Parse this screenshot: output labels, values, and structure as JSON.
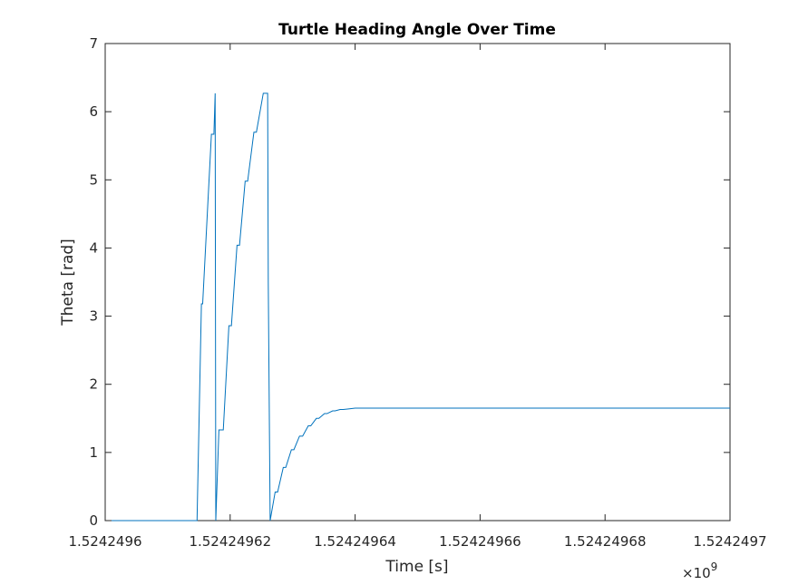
{
  "chart_data": {
    "type": "line",
    "title": "Turtle Heading Angle Over Time",
    "xlabel": "Time [s]",
    "ylabel": "Theta [rad]",
    "xlim": [
      1524249600,
      1524249700
    ],
    "ylim": [
      0,
      7
    ],
    "x_ticks": [
      1524249600,
      1524249620,
      1524249640,
      1524249660,
      1524249680,
      1524249700
    ],
    "x_tick_labels": [
      "1.5242496",
      "1.52424962",
      "1.52424964",
      "1.52424966",
      "1.52424968",
      "1.5242497"
    ],
    "x_exponent_label": "×10",
    "x_exponent_power": "9",
    "y_ticks": [
      0,
      1,
      2,
      3,
      4,
      5,
      6,
      7
    ],
    "y_tick_labels": [
      "0",
      "1",
      "2",
      "3",
      "4",
      "5",
      "6",
      "7"
    ],
    "grid": false,
    "line_color": "#0072BD",
    "series": [
      {
        "x": [
          1524249600,
          1524249614.7,
          1524249615.4,
          1524249615.6,
          1524249617.0,
          1524249617.4,
          1524249617.6,
          1524249617.7,
          1524249618.2,
          1524249618.6,
          1524249618.9,
          1524249619.8,
          1524249620.2,
          1524249621.1,
          1524249621.5,
          1524249622.4,
          1524249622.8,
          1524249623.8,
          1524249624.2,
          1524249625.3,
          1524249625.6,
          1524249625.7,
          1524249626.0,
          1524249626.1,
          1524249626.4,
          1524249627.2,
          1524249627.6,
          1524249628.5,
          1524249628.9,
          1524249629.8,
          1524249630.2,
          1524249631.1,
          1524249631.6,
          1524249632.5,
          1524249632.9,
          1524249633.8,
          1524249634.2,
          1524249635.1,
          1524249635.5,
          1524249636.4,
          1524249636.8,
          1524249637.6,
          1524249638.1,
          1524249639.1,
          1524249640.0,
          1524249700
        ],
        "y": [
          0,
          0,
          3.18,
          3.18,
          5.67,
          5.67,
          6.27,
          0,
          1.33,
          1.33,
          1.33,
          2.86,
          2.86,
          4.04,
          4.04,
          4.98,
          4.98,
          5.7,
          5.7,
          6.27,
          6.27,
          6.27,
          6.27,
          3.5,
          0,
          0.42,
          0.42,
          0.78,
          0.78,
          1.04,
          1.04,
          1.24,
          1.24,
          1.39,
          1.39,
          1.5,
          1.5,
          1.57,
          1.57,
          1.61,
          1.61,
          1.63,
          1.63,
          1.64,
          1.65,
          1.65
        ]
      }
    ]
  }
}
